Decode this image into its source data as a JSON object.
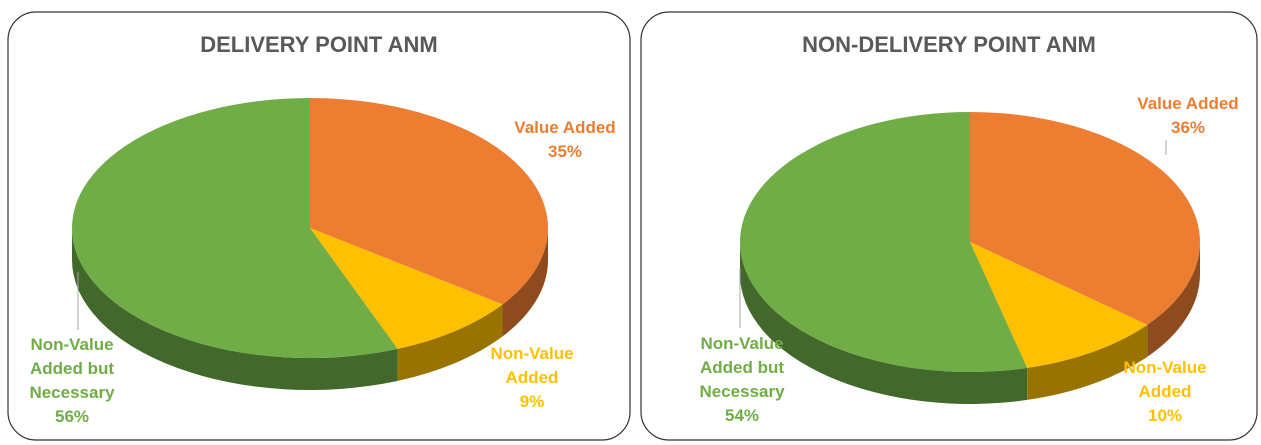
{
  "chart_data": [
    {
      "type": "pie",
      "title": "DELIVERY POINT ANM",
      "categories": [
        "Value Added",
        "Non-Value Added",
        "Non-Value Added but Necessary"
      ],
      "values": [
        35,
        9,
        56
      ],
      "value_labels": [
        "35%",
        "9%",
        "56%"
      ],
      "colors": [
        "#ed7d31",
        "#ffc000",
        "#70ad47"
      ]
    },
    {
      "type": "pie",
      "title": "NON-DELIVERY POINT ANM",
      "categories": [
        "Value Added",
        "Non-Value Added",
        "Non-Value Added but Necessary"
      ],
      "values": [
        36,
        10,
        54
      ],
      "value_labels": [
        "36%",
        "10%",
        "54%"
      ],
      "colors": [
        "#ed7d31",
        "#ffc000",
        "#70ad47"
      ]
    }
  ]
}
